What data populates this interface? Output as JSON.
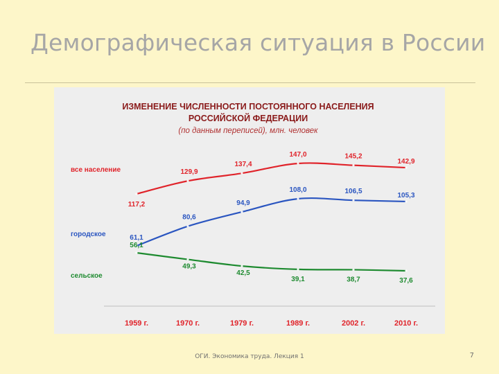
{
  "slide": {
    "title": "Демографическая ситуация в России",
    "footer": "ОГИ. Экономика труда. Лекция 1",
    "page_number": "7"
  },
  "colors": {
    "total": "#e0232a",
    "urban": "#2a55c0",
    "rural": "#1d8a2f",
    "title": "#8a1a1a",
    "subtitle": "#b03030",
    "axis": "#c8c8c8"
  },
  "chart_data": {
    "type": "line",
    "title_line1": "ИЗМЕНЕНИЕ ЧИСЛЕННОСТИ ПОСТОЯННОГО НАСЕЛЕНИЯ",
    "title_line2": "РОССИЙСКОЙ ФЕДЕРАЦИИ",
    "subtitle": "(по данным переписей), млн. человек",
    "categories": [
      "1959 г.",
      "1970 г.",
      "1979 г.",
      "1989 г.",
      "2002 г.",
      "2010 г."
    ],
    "x": [
      1959,
      1970,
      1979,
      1989,
      2002,
      2010
    ],
    "series": [
      {
        "key": "total",
        "name": "все население",
        "values": [
          117.2,
          129.9,
          137.4,
          147.0,
          145.2,
          142.9
        ],
        "labels": [
          "117,2",
          "129,9",
          "137,4",
          "147,0",
          "145,2",
          "142,9"
        ]
      },
      {
        "key": "urban",
        "name": "городское",
        "values": [
          61.1,
          80.6,
          94.9,
          108.0,
          106.5,
          105.3
        ],
        "labels": [
          "61,1",
          "80,6",
          "94,9",
          "108,0",
          "106,5",
          "105,3"
        ]
      },
      {
        "key": "rural",
        "name": "сельское",
        "values": [
          56.1,
          49.3,
          42.5,
          39.1,
          38.7,
          37.6
        ],
        "labels": [
          "56,1",
          "49,3",
          "42,5",
          "39,1",
          "38,7",
          "37,6"
        ]
      }
    ],
    "legend_placement": "left"
  }
}
